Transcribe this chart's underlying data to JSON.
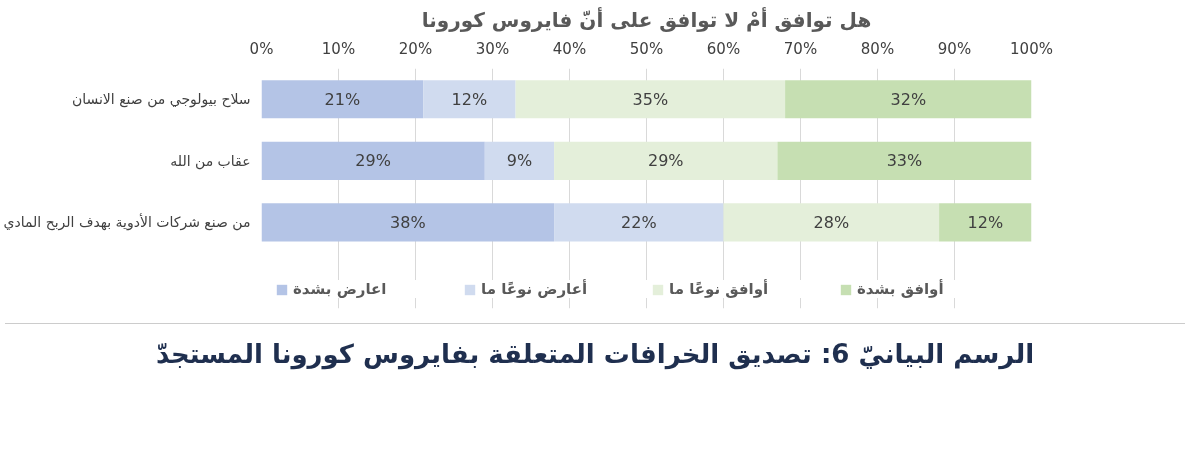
{
  "chart_data": {
    "type": "bar",
    "orientation": "horizontal",
    "stacked": true,
    "title": "هل توافق أمْ لا توافق على أنّ فايروس كورونا",
    "categories": [
      "سلاح بيولوجي من صنع الانسان",
      "عقاب من الله",
      "من صنع شركات الأدوية بهدف الربح المادي"
    ],
    "series": [
      {
        "name": "اعارض بشدة",
        "color": "#b4c4e6",
        "values": [
          21,
          29,
          38
        ],
        "value_labels": [
          "21%",
          "29%",
          "38%"
        ]
      },
      {
        "name": "أعارض نوعًا ما",
        "color": "#d0dbef",
        "values": [
          12,
          9,
          22
        ],
        "value_labels": [
          "12%",
          "9%",
          "22%"
        ]
      },
      {
        "name": "أوافق نوعًا ما",
        "color": "#e4efda",
        "values": [
          35,
          29,
          28
        ],
        "value_labels": [
          "35%",
          "29%",
          "28%"
        ]
      },
      {
        "name": "أوافق بشدة",
        "color": "#c6dfb2",
        "values": [
          32,
          33,
          12
        ],
        "value_labels": [
          "32%",
          "33%",
          "12%"
        ]
      }
    ],
    "xlim": [
      0,
      100
    ],
    "xticks": [
      {
        "value": 0,
        "label": "0%"
      },
      {
        "value": 10,
        "label": "10%"
      },
      {
        "value": 20,
        "label": "20%"
      },
      {
        "value": 30,
        "label": "30%"
      },
      {
        "value": 40,
        "label": "40%"
      },
      {
        "value": 50,
        "label": "50%"
      },
      {
        "value": 60,
        "label": "60%"
      },
      {
        "value": 70,
        "label": "70%"
      },
      {
        "value": 80,
        "label": "80%"
      },
      {
        "value": 90,
        "label": "90%"
      },
      {
        "value": 100,
        "label": "100%"
      }
    ],
    "grid": "x",
    "legend": "bottom",
    "annotations": [
      "الرسم البيانيّ 6: تصديق الخرافات المتعلقة بفايروس كورونا المستجدّ"
    ]
  }
}
